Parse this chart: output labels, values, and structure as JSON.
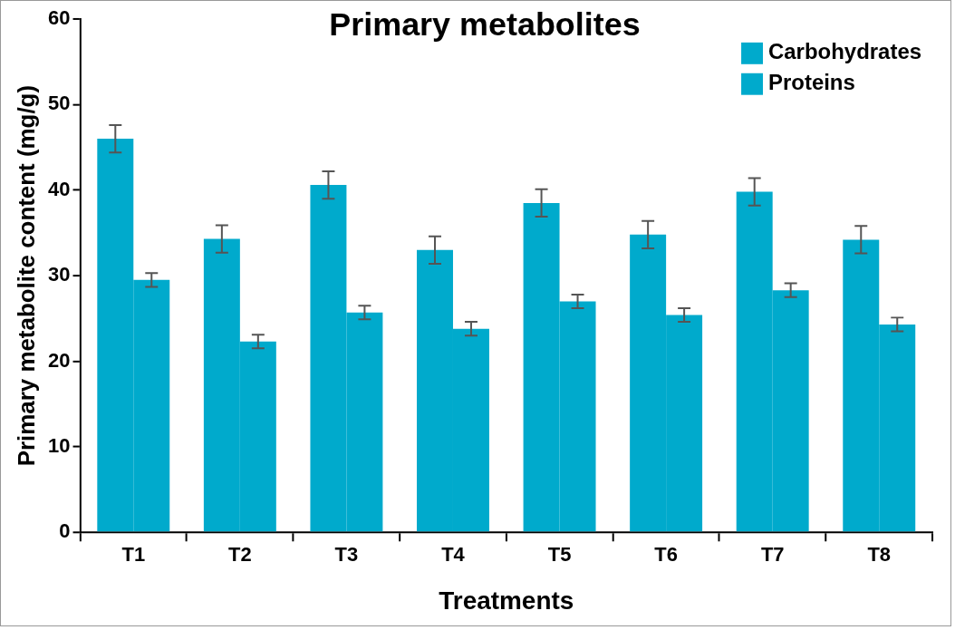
{
  "chart_data": {
    "type": "bar",
    "title": "Primary metabolites",
    "xlabel": "Treatments",
    "ylabel": "Primary metabolite content (mg/g)",
    "categories": [
      "T1",
      "T2",
      "T3",
      "T4",
      "T5",
      "T6",
      "T7",
      "T8"
    ],
    "series": [
      {
        "name": "Carbohydrates",
        "color": "#00aacc",
        "values": [
          46.0,
          34.3,
          40.6,
          33.0,
          38.5,
          34.8,
          39.8,
          34.2
        ],
        "errors": [
          1.6,
          1.6,
          1.6,
          1.6,
          1.6,
          1.6,
          1.6,
          1.6
        ]
      },
      {
        "name": "Proteins",
        "color": "#00aacc",
        "values": [
          29.5,
          22.3,
          25.7,
          23.8,
          27.0,
          25.4,
          28.3,
          24.3
        ],
        "errors": [
          0.8,
          0.8,
          0.8,
          0.8,
          0.8,
          0.8,
          0.8,
          0.8
        ]
      }
    ],
    "ylim": [
      0,
      60
    ],
    "yticks": [
      0,
      10,
      20,
      30,
      40,
      50,
      60
    ],
    "grid": false,
    "legend": "top right"
  }
}
